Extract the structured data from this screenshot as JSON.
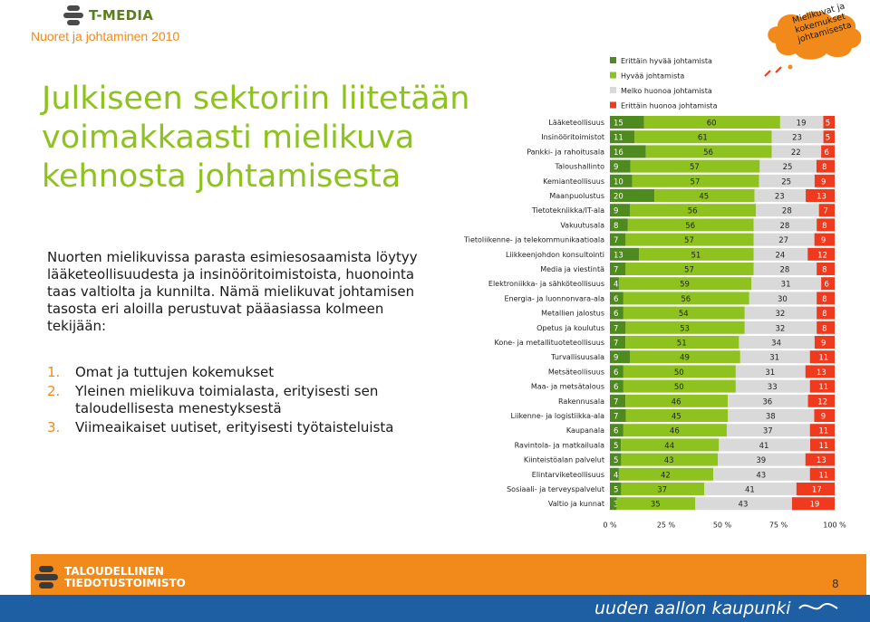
{
  "header": {
    "brand": "T-MEDIA",
    "subtitle": "Nuoret ja johtaminen 2010"
  },
  "badge": {
    "lines": [
      "Mielikuvat ja",
      "kokemukset",
      "johtamisesta"
    ]
  },
  "headline": [
    "Julkiseen sektoriin liitetään",
    "voimakkaasti mielikuva",
    "kehnosta johtamisesta"
  ],
  "body_text": "Nuorten mielikuvissa parasta esimiesosaamista löytyy lääketeollisuudesta ja insinööritoimistoista, huonointa taas valtiolta ja kunnilta. Nämä mielikuvat johtamisen tasosta eri aloilla perustuvat pääasiassa kolmeen tekijään:",
  "list": [
    {
      "num": "1.",
      "text": "Omat ja tuttujen kokemukset"
    },
    {
      "num": "2.",
      "text": "Yleinen mielikuva toimialasta, erityisesti sen taloudellisesta menestyksestä"
    },
    {
      "num": "3.",
      "text": "Viimeaikaiset uutiset, erityisesti työtaisteluista"
    }
  ],
  "chart_data": {
    "type": "bar",
    "orientation": "horizontal",
    "stacked": true,
    "categories": [
      "Lääketeollisuus",
      "Insinööritoimistot",
      "Pankki- ja rahoitusala",
      "Taloushallinto",
      "Kemianteollisuus",
      "Maanpuolustus",
      "Tietotekniikka/IT-ala",
      "Vakuutusala",
      "Tietoliikenne- ja telekommunikaatioala",
      "Liikkeenjohdon konsultointi",
      "Media ja viestintä",
      "Elektroniikka- ja sähköteollisuus",
      "Energia- ja luonnonvara-ala",
      "Metallien jalostus",
      "Opetus ja koulutus",
      "Kone- ja metallituoteteollisuus",
      "Turvallisuusala",
      "Metsäteollisuus",
      "Maa- ja metsätalous",
      "Rakennusala",
      "Liikenne- ja logistiikka-ala",
      "Kaupanala",
      "Ravintola- ja matkailuala",
      "Kiinteistöalan palvelut",
      "Elintarviketeollisuus",
      "Sosiaali- ja terveyspalvelut",
      "Valtio ja kunnat"
    ],
    "series": [
      {
        "name": "Erittäin hyvää johtamista",
        "color": "#4e8a1e",
        "values": [
          15,
          11,
          16,
          9,
          10,
          20,
          9,
          8,
          7,
          13,
          7,
          4,
          6,
          6,
          7,
          7,
          9,
          6,
          6,
          7,
          7,
          6,
          5,
          5,
          4,
          5,
          3
        ]
      },
      {
        "name": "Hyvää johtamista",
        "color": "#8ec21f",
        "values": [
          60,
          61,
          56,
          57,
          57,
          45,
          56,
          56,
          57,
          51,
          57,
          59,
          56,
          54,
          53,
          51,
          49,
          50,
          50,
          46,
          45,
          46,
          44,
          43,
          42,
          37,
          35
        ]
      },
      {
        "name": "Melko huonoa johtamista",
        "color": "#d9d9d9",
        "values": [
          19,
          23,
          22,
          25,
          25,
          23,
          28,
          28,
          27,
          24,
          28,
          31,
          30,
          32,
          32,
          34,
          31,
          31,
          33,
          36,
          38,
          37,
          41,
          39,
          43,
          41,
          43
        ]
      },
      {
        "name": "Erittäin huonoa johtamista",
        "color": "#f03a1e",
        "values": [
          5,
          5,
          6,
          8,
          9,
          13,
          7,
          8,
          9,
          12,
          8,
          6,
          8,
          8,
          8,
          9,
          11,
          13,
          11,
          12,
          9,
          11,
          11,
          13,
          11,
          17,
          19
        ]
      }
    ],
    "x_ticks": [
      "0 %",
      "25 %",
      "50 %",
      "75 %",
      "100 %"
    ],
    "xlim": [
      0,
      100
    ],
    "legend_position": "top",
    "grid": false
  },
  "footer": {
    "org_line1": "TALOUDELLINEN",
    "org_line2": "TIEDOTUSTOIMISTO",
    "page_number": "8",
    "tagline": "uuden aallon kaupunki"
  }
}
